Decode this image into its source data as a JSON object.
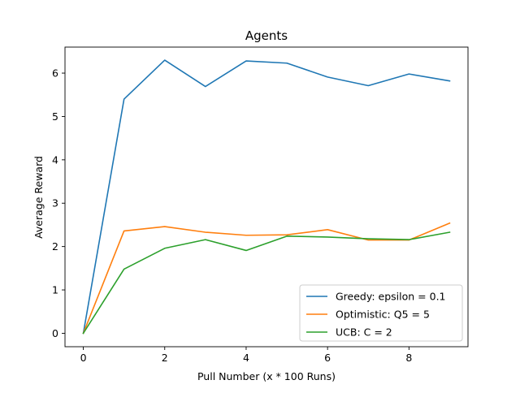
{
  "chart_data": {
    "type": "line",
    "title": "Agents",
    "xlabel": "Pull Number (x * 100 Runs)",
    "ylabel": "Average Reward",
    "x": [
      0,
      1,
      2,
      3,
      4,
      5,
      6,
      7,
      8,
      9
    ],
    "xlim": [
      -0.45,
      9.45
    ],
    "ylim": [
      -0.31,
      6.6
    ],
    "xticks": [
      0,
      2,
      4,
      6,
      8
    ],
    "yticks": [
      0,
      1,
      2,
      3,
      4,
      5,
      6
    ],
    "grid": false,
    "legend_position": "lower-right",
    "series": [
      {
        "name": "Greedy: epsilon = 0.1",
        "color": "#1f77b4",
        "values": [
          0,
          5.4,
          6.3,
          5.69,
          6.28,
          6.23,
          5.91,
          5.71,
          5.98,
          5.82
        ]
      },
      {
        "name": "Optimistic: Q5 = 5",
        "color": "#ff7f0e",
        "values": [
          0,
          2.36,
          2.46,
          2.33,
          2.26,
          2.27,
          2.39,
          2.15,
          2.15,
          2.54
        ]
      },
      {
        "name": "UCB: C = 2",
        "color": "#2ca02c",
        "values": [
          0,
          1.48,
          1.96,
          2.16,
          1.91,
          2.24,
          2.22,
          2.18,
          2.16,
          2.33
        ]
      }
    ]
  }
}
